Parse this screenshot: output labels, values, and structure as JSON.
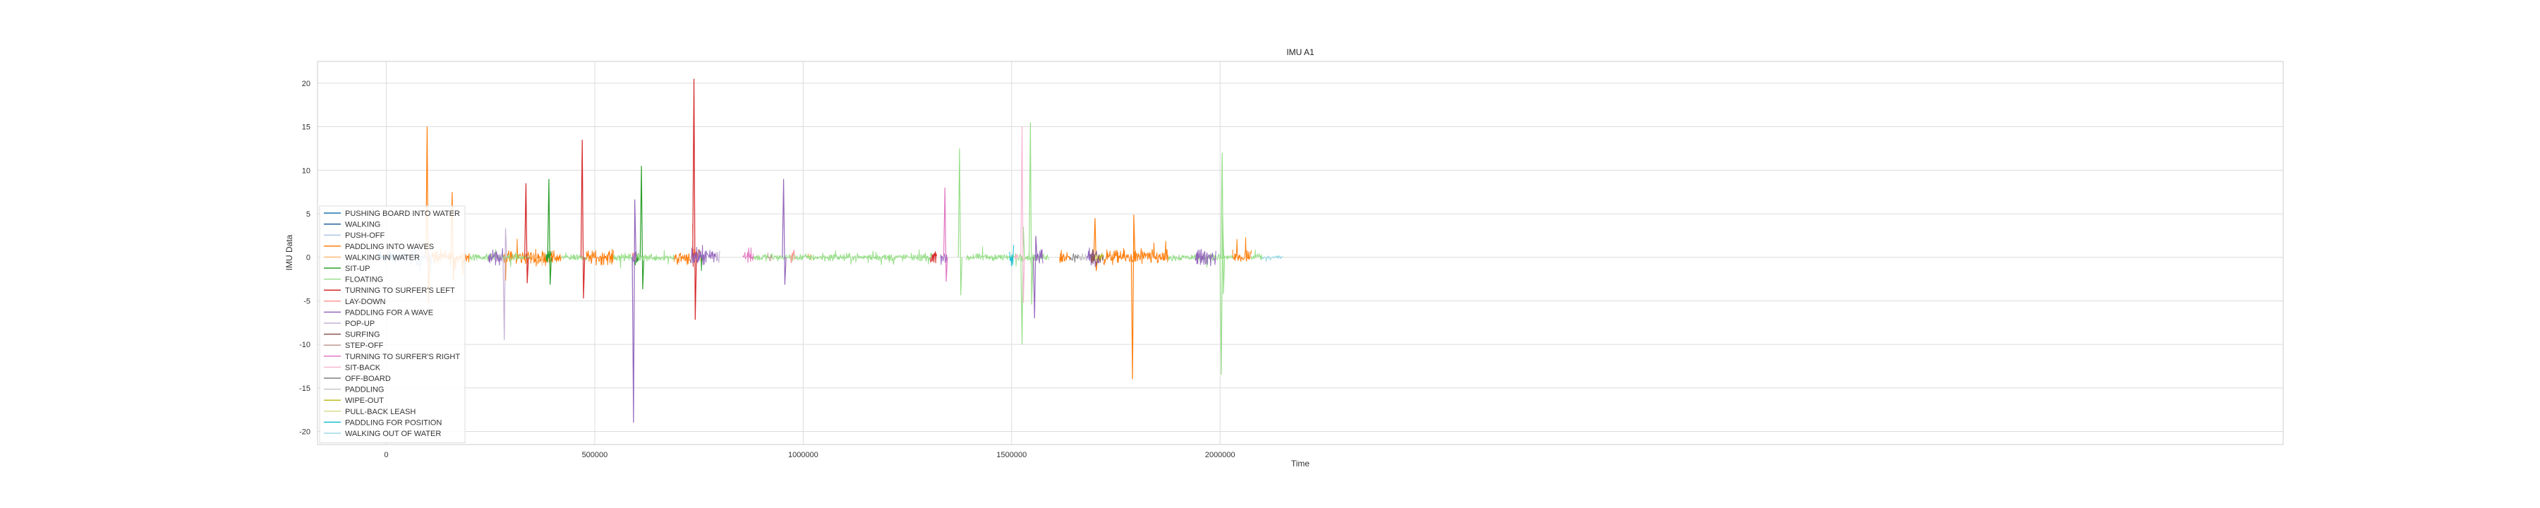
{
  "chart_data": {
    "type": "line",
    "title": "IMU A1",
    "xlabel": "Time",
    "ylabel": "IMU Data",
    "xlim": [
      -165000,
      4550000
    ],
    "ylim": [
      -21.5,
      22.5
    ],
    "xticks": [
      0,
      500000,
      1000000,
      1500000,
      2000000
    ],
    "xtick_labels": [
      "0",
      "500000",
      "1000000",
      "1500000",
      "2000000"
    ],
    "yticks": [
      -20,
      -15,
      -10,
      -5,
      0,
      5,
      10,
      15,
      20
    ],
    "ytick_labels": [
      "-20",
      "-15",
      "-10",
      "-5",
      "0",
      "5",
      "10",
      "15",
      "20"
    ],
    "grid": true,
    "legend_position": "lower-left",
    "series": [
      {
        "name": "PUSHING BOARD INTO WATER",
        "color": "#1f77b4",
        "segments": [
          [
            -20000,
            25000
          ]
        ],
        "amp": 0.8
      },
      {
        "name": "WALKING",
        "color": "#1f5f9a",
        "segments": [
          [
            25000,
            45000
          ]
        ],
        "amp": 0.7
      },
      {
        "name": "PUSH-OFF",
        "color": "#aec7e8",
        "segments": [
          [
            45000,
            110000
          ]
        ],
        "amp": 1.4
      },
      {
        "name": "PADDLING INTO WAVES",
        "color": "#ff7f0e",
        "segments": [
          [
            110000,
            200000
          ],
          [
            280000,
            420000
          ],
          [
            480000,
            545000
          ],
          [
            690000,
            760000
          ],
          [
            1615000,
            1640000
          ],
          [
            1720000,
            1875000
          ],
          [
            2030000,
            2075000
          ]
        ],
        "amp": 1.2,
        "spikes": [
          [
            98000,
            15.0
          ],
          [
            158000,
            7.5
          ],
          [
            1790000,
            -14.0
          ],
          [
            1700000,
            4.5
          ]
        ]
      },
      {
        "name": "WALKING IN WATER",
        "color": "#ffbb78",
        "segments": [
          [
            345000,
            380000
          ],
          [
            1010000,
            1020000
          ]
        ],
        "amp": 0.9
      },
      {
        "name": "SIT-UP",
        "color": "#2ca02c",
        "segments": [
          [
            383000,
            395000
          ],
          [
            595000,
            605000
          ],
          [
            752000,
            760000
          ]
        ],
        "amp": 1.5,
        "spikes": [
          [
            390000,
            9.0
          ],
          [
            612000,
            10.5
          ]
        ]
      },
      {
        "name": "FLOATING",
        "color": "#98df8a",
        "segments": [
          [
            200000,
            345000
          ],
          [
            420000,
            480000
          ],
          [
            545000,
            690000
          ],
          [
            880000,
            1310000
          ],
          [
            1390000,
            1590000
          ],
          [
            1875000,
            2000000
          ],
          [
            2000000,
            2030000
          ],
          [
            2075000,
            2100000
          ]
        ],
        "amp": 0.6,
        "spikes": [
          [
            1375000,
            12.5
          ],
          [
            1545000,
            15.5
          ],
          [
            2005000,
            12.0
          ],
          [
            2003000,
            -13.5
          ],
          [
            1525000,
            -10.0
          ]
        ]
      },
      {
        "name": "TURNING TO SURFER'S LEFT",
        "color": "#d62728",
        "segments": [
          [
            735000,
            745000
          ],
          [
            1305000,
            1320000
          ]
        ],
        "amp": 1.5,
        "spikes": [
          [
            738000,
            20.5
          ],
          [
            470000,
            13.5
          ],
          [
            335000,
            8.5
          ]
        ]
      },
      {
        "name": "LAY-DOWN",
        "color": "#ff9896",
        "segments": [
          [
            590000,
            600000
          ],
          [
            970000,
            980000
          ]
        ],
        "amp": 1.0
      },
      {
        "name": "PADDLING FOR A WAVE",
        "color": "#9467bd",
        "segments": [
          [
            245000,
            280000
          ],
          [
            590000,
            600000
          ],
          [
            730000,
            790000
          ],
          [
            1330000,
            1345000
          ],
          [
            1555000,
            1575000
          ],
          [
            1680000,
            1710000
          ],
          [
            1940000,
            1990000
          ]
        ],
        "amp": 1.4,
        "spikes": [
          [
            593000,
            -19.0
          ],
          [
            1555000,
            -7.0
          ],
          [
            953000,
            9.0
          ]
        ]
      },
      {
        "name": "POP-UP",
        "color": "#c5b0d5",
        "segments": [
          [
            790000,
            800000
          ]
        ],
        "amp": 1.0,
        "spikes": [
          [
            283000,
            -9.5
          ]
        ]
      },
      {
        "name": "SURFING",
        "color": "#8c564b",
        "segments": [
          [
            1690000,
            1720000
          ]
        ],
        "amp": 1.3
      },
      {
        "name": "STEP-OFF",
        "color": "#c49c94",
        "segments": [
          [
            915000,
            925000
          ]
        ],
        "amp": 0.9
      },
      {
        "name": "TURNING TO SURFER'S RIGHT",
        "color": "#e377c2",
        "segments": [
          [
            855000,
            880000
          ]
        ],
        "amp": 1.1,
        "spikes": [
          [
            1340000,
            8.0
          ]
        ]
      },
      {
        "name": "SIT-BACK",
        "color": "#f7b6d2",
        "segments": [
          [
            1505000,
            1515000
          ]
        ],
        "amp": 0.9,
        "spikes": [
          [
            1525000,
            15.0
          ]
        ]
      },
      {
        "name": "OFF-BOARD",
        "color": "#7f7f7f",
        "segments": [
          [
            1640000,
            1660000
          ]
        ],
        "amp": 0.8
      },
      {
        "name": "PADDLING",
        "color": "#c7c7c7",
        "segments": [
          [
            1660000,
            1680000
          ]
        ],
        "amp": 0.8
      },
      {
        "name": "WIPE-OUT",
        "color": "#bcbd22",
        "segments": [
          [
            1710000,
            1720000
          ]
        ],
        "amp": 1.0
      },
      {
        "name": "PULL-BACK LEASH",
        "color": "#dbdb8d",
        "segments": [
          [
            1700000,
            1706000
          ]
        ],
        "amp": 0.9
      },
      {
        "name": "PADDLING FOR POSITION",
        "color": "#17becf",
        "segments": [
          [
            1495000,
            1505000
          ]
        ],
        "amp": 1.0
      },
      {
        "name": "WALKING OUT OF WATER",
        "color": "#9edae5",
        "segments": [
          [
            2100000,
            2150000
          ]
        ],
        "amp": 0.4
      }
    ]
  }
}
